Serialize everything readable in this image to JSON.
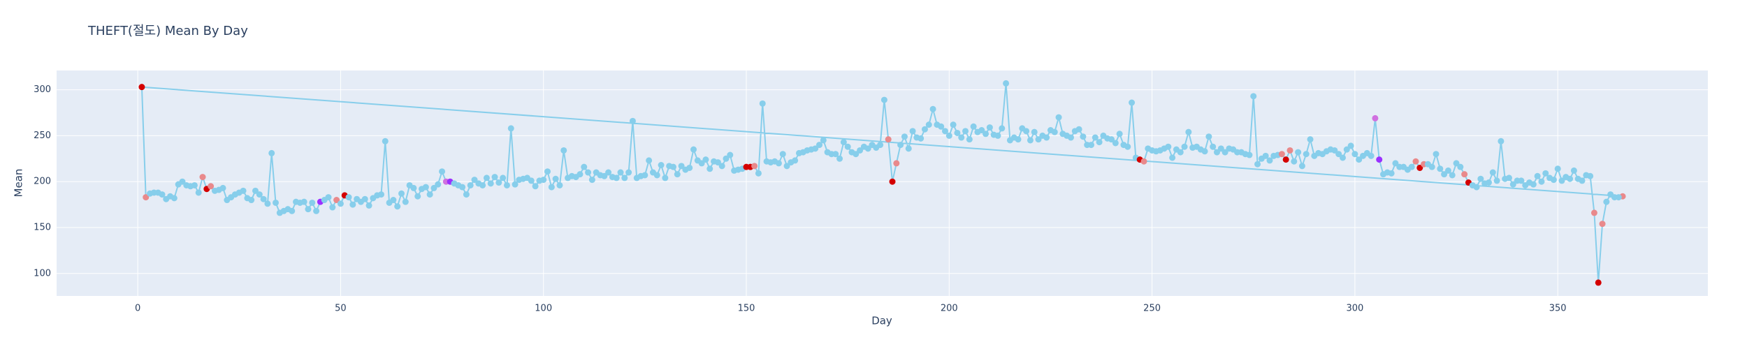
{
  "chart_data": {
    "type": "line",
    "title": "THEFT(절도) Mean By Day",
    "x_label": "Day",
    "y_label": "Mean",
    "xlim": [
      -20,
      387
    ],
    "ylim": [
      75.5,
      321
    ],
    "xticks": [
      0,
      50,
      100,
      150,
      200,
      250,
      300,
      350
    ],
    "yticks": [
      100,
      150,
      200,
      250,
      300
    ],
    "grid": true,
    "series": [
      {
        "color": "#87ceeb",
        "x": [
          366,
          1,
          2,
          3,
          4,
          5,
          6,
          7,
          8,
          9,
          10,
          11,
          12,
          13,
          14,
          15,
          16,
          17,
          18,
          19,
          20,
          21,
          22,
          23,
          24,
          25,
          26,
          27,
          28,
          29,
          30,
          31,
          32,
          33,
          34,
          35,
          36,
          37,
          38,
          39,
          40,
          41,
          42,
          43,
          44,
          45,
          46,
          47,
          48,
          49,
          50,
          51,
          52,
          53,
          54,
          55,
          56,
          57,
          58,
          59,
          60,
          61,
          62,
          63,
          64,
          65,
          66,
          67,
          68,
          69,
          70,
          71,
          72,
          73,
          74,
          75,
          76,
          77,
          78,
          79,
          80,
          81,
          82,
          83,
          84,
          85,
          86,
          87,
          88,
          89,
          90,
          91,
          92,
          93,
          94,
          95,
          96,
          97,
          98,
          99,
          100,
          101,
          102,
          103,
          104,
          105,
          106,
          107,
          108,
          109,
          110,
          111,
          112,
          113,
          114,
          115,
          116,
          117,
          118,
          119,
          120,
          121,
          122,
          123,
          124,
          125,
          126,
          127,
          128,
          129,
          130,
          131,
          132,
          133,
          134,
          135,
          136,
          137,
          138,
          139,
          140,
          141,
          142,
          143,
          144,
          145,
          146,
          147,
          148,
          149,
          150,
          151,
          152,
          153,
          154,
          155,
          156,
          157,
          158,
          159,
          160,
          161,
          162,
          163,
          164,
          165,
          166,
          167,
          168,
          169,
          170,
          171,
          172,
          173,
          174,
          175,
          176,
          177,
          178,
          179,
          180,
          181,
          182,
          183,
          184,
          185,
          186,
          187,
          188,
          189,
          190,
          191,
          192,
          193,
          194,
          195,
          196,
          197,
          198,
          199,
          200,
          201,
          202,
          203,
          204,
          205,
          206,
          207,
          208,
          209,
          210,
          211,
          212,
          213,
          214,
          215,
          216,
          217,
          218,
          219,
          220,
          221,
          222,
          223,
          224,
          225,
          226,
          227,
          228,
          229,
          230,
          231,
          232,
          233,
          234,
          235,
          236,
          237,
          238,
          239,
          240,
          241,
          242,
          243,
          244,
          245,
          246,
          247,
          248,
          249,
          250,
          251,
          252,
          253,
          254,
          255,
          256,
          257,
          258,
          259,
          260,
          261,
          262,
          263,
          264,
          265,
          266,
          267,
          268,
          269,
          270,
          271,
          272,
          273,
          274,
          275,
          276,
          277,
          278,
          279,
          280,
          281,
          282,
          283,
          284,
          285,
          286,
          287,
          288,
          289,
          290,
          291,
          292,
          293,
          294,
          295,
          296,
          297,
          298,
          299,
          300,
          301,
          302,
          303,
          304,
          305,
          306,
          307,
          308,
          309,
          310,
          311,
          312,
          313,
          314,
          315,
          316,
          317,
          318,
          319,
          320,
          321,
          322,
          323,
          324,
          325,
          326,
          327,
          328,
          329,
          330,
          331,
          332,
          333,
          334,
          335,
          336,
          337,
          338,
          339,
          340,
          341,
          342,
          343,
          344,
          345,
          346,
          347,
          348,
          349,
          350,
          351,
          352,
          353,
          354,
          355,
          356,
          357,
          358,
          359,
          360,
          361,
          362,
          363,
          364,
          365
        ],
        "values": [
          184,
          303,
          183,
          187,
          188,
          188,
          186,
          181,
          184,
          182,
          197,
          200,
          196,
          195,
          196,
          188,
          205,
          192,
          195,
          190,
          191,
          193,
          180,
          183,
          186,
          188,
          190,
          182,
          180,
          190,
          186,
          181,
          176,
          231,
          177,
          166,
          168,
          170,
          168,
          178,
          177,
          178,
          170,
          177,
          168,
          178,
          180,
          183,
          172,
          180,
          176,
          185,
          183,
          175,
          181,
          178,
          181,
          174,
          182,
          185,
          186,
          244,
          177,
          180,
          173,
          187,
          178,
          196,
          193,
          184,
          192,
          194,
          186,
          193,
          197,
          211,
          200,
          200,
          198,
          196,
          194,
          186,
          196,
          202,
          198,
          196,
          204,
          198,
          205,
          199,
          204,
          196,
          258,
          197,
          202,
          203,
          204,
          201,
          195,
          201,
          202,
          211,
          194,
          203,
          196,
          234,
          204,
          206,
          205,
          208,
          216,
          210,
          202,
          210,
          207,
          206,
          210,
          205,
          204,
          210,
          204,
          210,
          266,
          204,
          206,
          207,
          223,
          210,
          207,
          218,
          204,
          217,
          216,
          208,
          217,
          213,
          215,
          235,
          223,
          220,
          224,
          214,
          222,
          221,
          217,
          225,
          229,
          212,
          213,
          214,
          216,
          216,
          217,
          209,
          285,
          222,
          221,
          222,
          220,
          230,
          217,
          221,
          223,
          231,
          232,
          234,
          235,
          236,
          240,
          245,
          232,
          230,
          230,
          225,
          243,
          238,
          232,
          230,
          234,
          238,
          236,
          240,
          237,
          240,
          289,
          246,
          200,
          220,
          240,
          249,
          236,
          255,
          248,
          247,
          257,
          262,
          279,
          262,
          260,
          255,
          250,
          262,
          253,
          248,
          255,
          246,
          260,
          254,
          256,
          252,
          259,
          251,
          250,
          258,
          307,
          245,
          248,
          246,
          258,
          255,
          245,
          254,
          246,
          250,
          248,
          256,
          254,
          270,
          252,
          250,
          248,
          255,
          257,
          249,
          240,
          240,
          248,
          243,
          250,
          247,
          246,
          242,
          252,
          240,
          238,
          286,
          226,
          224,
          222,
          236,
          234,
          233,
          234,
          236,
          238,
          226,
          235,
          232,
          238,
          254,
          237,
          238,
          235,
          233,
          249,
          238,
          232,
          236,
          232,
          236,
          235,
          232,
          232,
          230,
          229,
          293,
          219,
          225,
          228,
          223,
          228,
          229,
          230,
          224,
          234,
          222,
          232,
          217,
          230,
          246,
          228,
          231,
          230,
          233,
          235,
          234,
          230,
          226,
          235,
          239,
          230,
          224,
          228,
          231,
          228,
          269,
          224,
          208,
          210,
          209,
          220,
          216,
          216,
          213,
          216,
          222,
          215,
          219,
          219,
          216,
          230,
          214,
          208,
          212,
          207,
          220,
          216,
          208,
          199,
          196,
          194,
          203,
          198,
          199,
          210,
          201,
          244,
          203,
          204,
          197,
          201,
          201,
          196,
          199,
          197,
          206,
          200,
          209,
          204,
          202,
          214,
          201,
          205,
          203,
          212,
          203,
          201,
          207,
          206,
          166,
          90,
          154,
          178,
          186,
          183,
          183
        ],
        "marker_colors": [
          "#e9898b",
          "#d40000",
          "#e9898b",
          "#87ceeb",
          "#87ceeb",
          "#87ceeb",
          "#87ceeb",
          "#87ceeb",
          "#87ceeb",
          "#87ceeb",
          "#87ceeb",
          "#87ceeb",
          "#87ceeb",
          "#87ceeb",
          "#87ceeb",
          "#87ceeb",
          "#e9898b",
          "#d40000",
          "#e9898b",
          "#87ceeb",
          "#87ceeb",
          "#87ceeb",
          "#87ceeb",
          "#87ceeb",
          "#87ceeb",
          "#87ceeb",
          "#87ceeb",
          "#87ceeb",
          "#87ceeb",
          "#87ceeb",
          "#87ceeb",
          "#87ceeb",
          "#87ceeb",
          "#87ceeb",
          "#87ceeb",
          "#87ceeb",
          "#87ceeb",
          "#87ceeb",
          "#87ceeb",
          "#87ceeb",
          "#87ceeb",
          "#87ceeb",
          "#87ceeb",
          "#87ceeb",
          "#87ceeb",
          "#9b30ff",
          "#87ceeb",
          "#87ceeb",
          "#87ceeb",
          "#e9898b",
          "#87ceeb",
          "#d40000",
          "#87ceeb",
          "#87ceeb",
          "#87ceeb",
          "#87ceeb",
          "#87ceeb",
          "#87ceeb",
          "#87ceeb",
          "#87ceeb",
          "#87ceeb",
          "#87ceeb",
          "#87ceeb",
          "#87ceeb",
          "#87ceeb",
          "#87ceeb",
          "#87ceeb",
          "#87ceeb",
          "#87ceeb",
          "#87ceeb",
          "#87ceeb",
          "#87ceeb",
          "#87ceeb",
          "#87ceeb",
          "#87ceeb",
          "#87ceeb",
          "#d070e0",
          "#9b30ff",
          "#87ceeb",
          "#87ceeb",
          "#87ceeb",
          "#87ceeb",
          "#87ceeb",
          "#87ceeb",
          "#87ceeb",
          "#87ceeb",
          "#87ceeb",
          "#87ceeb",
          "#87ceeb",
          "#87ceeb",
          "#87ceeb",
          "#87ceeb",
          "#87ceeb",
          "#87ceeb",
          "#87ceeb",
          "#87ceeb",
          "#87ceeb",
          "#87ceeb",
          "#87ceeb",
          "#87ceeb",
          "#87ceeb",
          "#87ceeb",
          "#87ceeb",
          "#87ceeb",
          "#87ceeb",
          "#87ceeb",
          "#87ceeb",
          "#87ceeb",
          "#87ceeb",
          "#87ceeb",
          "#87ceeb",
          "#87ceeb",
          "#87ceeb",
          "#87ceeb",
          "#87ceeb",
          "#87ceeb",
          "#87ceeb",
          "#87ceeb",
          "#87ceeb",
          "#87ceeb",
          "#87ceeb",
          "#87ceeb",
          "#87ceeb",
          "#87ceeb",
          "#87ceeb",
          "#87ceeb",
          "#87ceeb",
          "#87ceeb",
          "#87ceeb",
          "#87ceeb",
          "#87ceeb",
          "#87ceeb",
          "#87ceeb",
          "#87ceeb",
          "#87ceeb",
          "#87ceeb",
          "#87ceeb",
          "#87ceeb",
          "#87ceeb",
          "#87ceeb",
          "#87ceeb",
          "#87ceeb",
          "#87ceeb",
          "#87ceeb",
          "#87ceeb",
          "#87ceeb",
          "#87ceeb",
          "#87ceeb",
          "#87ceeb",
          "#87ceeb",
          "#d40000",
          "#d40000",
          "#e9898b",
          "#87ceeb",
          "#87ceeb",
          "#87ceeb",
          "#87ceeb",
          "#87ceeb",
          "#87ceeb",
          "#87ceeb",
          "#87ceeb",
          "#87ceeb",
          "#87ceeb",
          "#87ceeb",
          "#87ceeb",
          "#87ceeb",
          "#87ceeb",
          "#87ceeb",
          "#87ceeb",
          "#87ceeb",
          "#87ceeb",
          "#87ceeb",
          "#87ceeb",
          "#87ceeb",
          "#87ceeb",
          "#87ceeb",
          "#87ceeb",
          "#87ceeb",
          "#87ceeb",
          "#87ceeb",
          "#87ceeb",
          "#87ceeb",
          "#87ceeb",
          "#87ceeb",
          "#87ceeb",
          "#e9898b",
          "#d40000",
          "#e9898b",
          "#87ceeb",
          "#87ceeb",
          "#87ceeb",
          "#87ceeb",
          "#87ceeb",
          "#87ceeb",
          "#87ceeb",
          "#87ceeb",
          "#87ceeb",
          "#87ceeb",
          "#87ceeb",
          "#87ceeb",
          "#87ceeb",
          "#87ceeb",
          "#87ceeb",
          "#87ceeb",
          "#87ceeb",
          "#87ceeb",
          "#87ceeb",
          "#87ceeb",
          "#87ceeb",
          "#87ceeb",
          "#87ceeb",
          "#87ceeb",
          "#87ceeb",
          "#87ceeb",
          "#87ceeb",
          "#87ceeb",
          "#87ceeb",
          "#87ceeb",
          "#87ceeb",
          "#87ceeb",
          "#87ceeb",
          "#87ceeb",
          "#87ceeb",
          "#87ceeb",
          "#87ceeb",
          "#87ceeb",
          "#87ceeb",
          "#87ceeb",
          "#87ceeb",
          "#87ceeb",
          "#87ceeb",
          "#87ceeb",
          "#87ceeb",
          "#87ceeb",
          "#87ceeb",
          "#87ceeb",
          "#87ceeb",
          "#87ceeb",
          "#87ceeb",
          "#87ceeb",
          "#87ceeb",
          "#87ceeb",
          "#87ceeb",
          "#87ceeb",
          "#87ceeb",
          "#87ceeb",
          "#87ceeb",
          "#d40000",
          "#e9898b",
          "#87ceeb",
          "#87ceeb",
          "#87ceeb",
          "#87ceeb",
          "#87ceeb",
          "#87ceeb",
          "#87ceeb",
          "#87ceeb",
          "#87ceeb",
          "#87ceeb",
          "#87ceeb",
          "#87ceeb",
          "#87ceeb",
          "#87ceeb",
          "#87ceeb",
          "#87ceeb",
          "#87ceeb",
          "#87ceeb",
          "#87ceeb",
          "#87ceeb",
          "#87ceeb",
          "#87ceeb",
          "#87ceeb",
          "#87ceeb",
          "#87ceeb",
          "#87ceeb",
          "#87ceeb",
          "#87ceeb",
          "#87ceeb",
          "#87ceeb",
          "#87ceeb",
          "#87ceeb",
          "#87ceeb",
          "#e9898b",
          "#d40000",
          "#e9898b",
          "#87ceeb",
          "#87ceeb",
          "#87ceeb",
          "#87ceeb",
          "#87ceeb",
          "#87ceeb",
          "#87ceeb",
          "#87ceeb",
          "#87ceeb",
          "#87ceeb",
          "#87ceeb",
          "#87ceeb",
          "#87ceeb",
          "#87ceeb",
          "#87ceeb",
          "#87ceeb",
          "#87ceeb",
          "#87ceeb",
          "#87ceeb",
          "#87ceeb",
          "#d070e0",
          "#9b30ff",
          "#87ceeb",
          "#87ceeb",
          "#87ceeb",
          "#87ceeb",
          "#87ceeb",
          "#87ceeb",
          "#87ceeb",
          "#87ceeb",
          "#e9898b",
          "#d40000",
          "#e9898b",
          "#87ceeb",
          "#87ceeb",
          "#87ceeb",
          "#87ceeb",
          "#87ceeb",
          "#87ceeb",
          "#87ceeb",
          "#87ceeb",
          "#87ceeb",
          "#e9898b",
          "#d40000",
          "#87ceeb",
          "#87ceeb",
          "#87ceeb",
          "#87ceeb",
          "#87ceeb",
          "#87ceeb",
          "#87ceeb",
          "#87ceeb",
          "#87ceeb",
          "#87ceeb",
          "#87ceeb",
          "#87ceeb",
          "#87ceeb",
          "#87ceeb",
          "#87ceeb",
          "#87ceeb",
          "#87ceeb",
          "#87ceeb",
          "#87ceeb",
          "#87ceeb",
          "#87ceeb",
          "#87ceeb",
          "#87ceeb",
          "#87ceeb",
          "#87ceeb",
          "#87ceeb",
          "#87ceeb",
          "#87ceeb",
          "#87ceeb",
          "#87ceeb",
          "#e9898b",
          "#d40000",
          "#e9898b",
          "#87ceeb",
          "#87ceeb",
          "#87ceeb",
          "#87ceeb"
        ]
      }
    ]
  }
}
